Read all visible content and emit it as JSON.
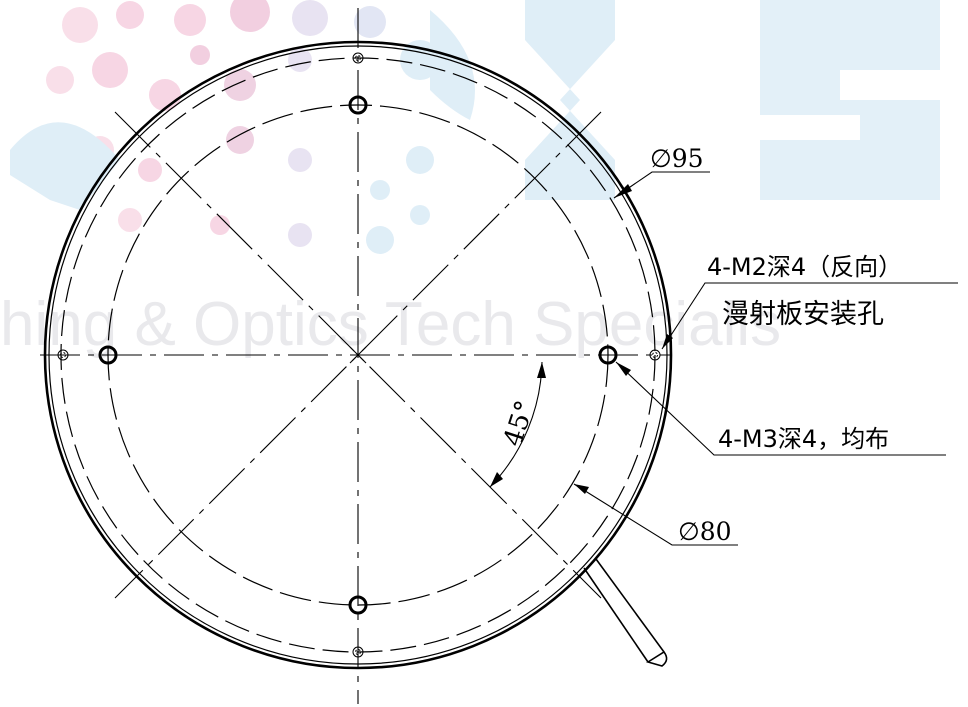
{
  "watermark": {
    "text": "hing & Optics Tech Specialis",
    "colors": {
      "pink": "#f7d6e4",
      "blue": "#dfeef7",
      "text": "#e9e9ec"
    }
  },
  "dimensions": {
    "outer_diameter": "∅95",
    "bolt_circle_diameter": "∅80",
    "angle": "45°"
  },
  "callouts": {
    "m2_holes": {
      "line1": "4-M2深4（反向）",
      "line2": "漫射板安装孔"
    },
    "m3_holes": {
      "line1": "4-M3深4，均布"
    }
  },
  "colors": {
    "line": "#000000",
    "background": "#ffffff"
  }
}
